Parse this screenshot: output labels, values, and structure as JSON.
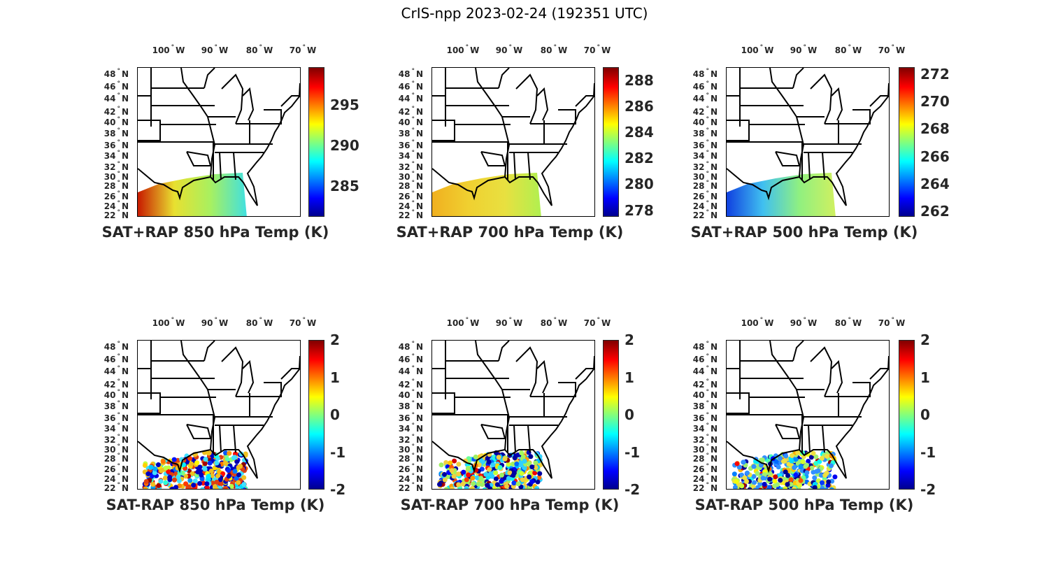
{
  "figure_title": "CrIS-npp 2023-02-24 (192351 UTC)",
  "lon_labels": [
    {
      "deg": "100",
      "hemi": "W"
    },
    {
      "deg": "90",
      "hemi": "W"
    },
    {
      "deg": "80",
      "hemi": "W"
    },
    {
      "deg": "70",
      "hemi": "W"
    }
  ],
  "lat_labels": [
    {
      "deg": "48",
      "hemi": "N"
    },
    {
      "deg": "46",
      "hemi": "N"
    },
    {
      "deg": "44",
      "hemi": "N"
    },
    {
      "deg": "42",
      "hemi": "N"
    },
    {
      "deg": "40",
      "hemi": "N"
    },
    {
      "deg": "38",
      "hemi": "N"
    },
    {
      "deg": "36",
      "hemi": "N"
    },
    {
      "deg": "34",
      "hemi": "N"
    },
    {
      "deg": "32",
      "hemi": "N"
    },
    {
      "deg": "30",
      "hemi": "N"
    },
    {
      "deg": "28",
      "hemi": "N"
    },
    {
      "deg": "26",
      "hemi": "N"
    },
    {
      "deg": "24",
      "hemi": "N"
    },
    {
      "deg": "22",
      "hemi": "N"
    }
  ],
  "degree_symbol": "°",
  "panels": [
    {
      "title": "SAT+RAP 850 hPa Temp (K)",
      "kind": "field",
      "cmin": 281.2,
      "cmax": 299.6,
      "ticks": [
        "285",
        "290",
        "295"
      ],
      "swath_colors": [
        "#c81a00",
        "#e8e030",
        "#a8f060",
        "#40e0e0"
      ]
    },
    {
      "title": "SAT+RAP 700 hPa Temp (K)",
      "kind": "field",
      "cmin": 277.5,
      "cmax": 289.0,
      "ticks": [
        "278",
        "280",
        "282",
        "284",
        "286",
        "288"
      ],
      "swath_colors": [
        "#f0b020",
        "#f0d030",
        "#e8e040",
        "#b0f050"
      ]
    },
    {
      "title": "SAT+RAP 500 hPa Temp (K)",
      "kind": "field",
      "cmin": 261.6,
      "cmax": 272.5,
      "ticks": [
        "262",
        "264",
        "266",
        "268",
        "270",
        "272"
      ],
      "swath_colors": [
        "#1040e0",
        "#40c0f0",
        "#90f080",
        "#d0f060"
      ]
    },
    {
      "title": "SAT-RAP 850 hPa Temp (K)",
      "kind": "diff",
      "cmin": -2,
      "cmax": 2,
      "ticks": [
        "-2",
        "-1",
        "0",
        "1",
        "2"
      ],
      "swath_colors": [
        "#0000c0",
        "#f0c020",
        "#e04010",
        "#40e0ff"
      ]
    },
    {
      "title": "SAT-RAP 700 hPa Temp (K)",
      "kind": "diff",
      "cmin": -2,
      "cmax": 2,
      "ticks": [
        "-2",
        "-1",
        "0",
        "1",
        "2"
      ],
      "swath_colors": [
        "#0000a0",
        "#f0d040",
        "#30d0ff",
        "#a0f060"
      ]
    },
    {
      "title": "SAT-RAP 500 hPa Temp (K)",
      "kind": "diff",
      "cmin": -2,
      "cmax": 2,
      "ticks": [
        "-2",
        "-1",
        "0",
        "1",
        "2"
      ],
      "swath_colors": [
        "#000090",
        "#f0e040",
        "#3090ff",
        "#a0f070"
      ]
    }
  ]
}
